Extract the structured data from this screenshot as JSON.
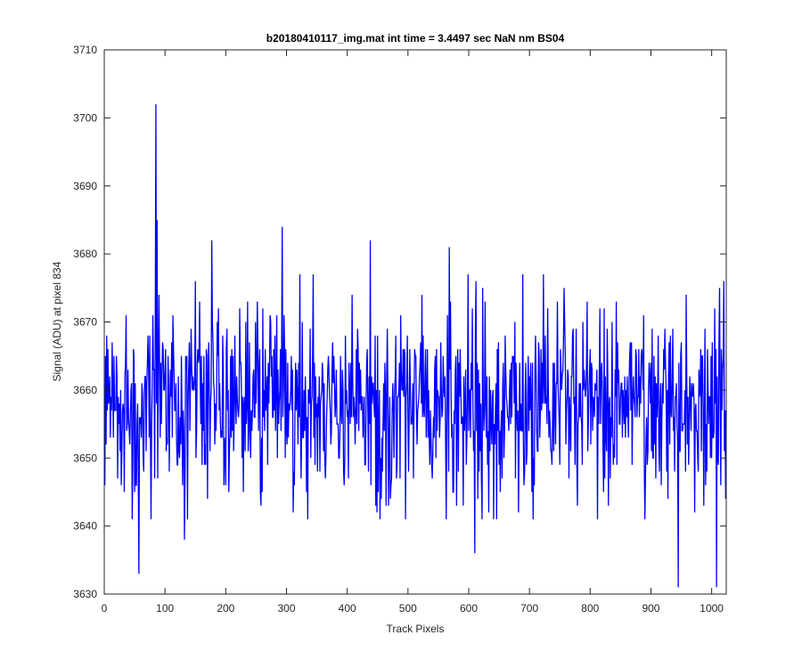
{
  "chart_data": {
    "type": "line",
    "title": "b20180410117_img.mat int time = 3.4497 sec  NaN nm BS04",
    "xlabel": "Track Pixels",
    "ylabel": "Signal (ADU) at pixel 834",
    "xlim": [
      0,
      1024
    ],
    "ylim": [
      3630,
      3710
    ],
    "xticks": [
      "0",
      "100",
      "200",
      "300",
      "400",
      "500",
      "600",
      "700",
      "800",
      "900",
      "1000"
    ],
    "yticks": [
      "3630",
      "3640",
      "3650",
      "3660",
      "3670",
      "3680",
      "3690",
      "3700",
      "3710"
    ],
    "grid": false,
    "legend": "none",
    "series": [
      {
        "name": "",
        "color": "#0000ff",
        "x_start": 1,
        "x_step": 1,
        "count": 1024,
        "baseline": 3658,
        "noise_std": 7,
        "highlights": [
          {
            "x": 57,
            "y": 3633
          },
          {
            "x": 85,
            "y": 3702
          },
          {
            "x": 87,
            "y": 3685
          },
          {
            "x": 132,
            "y": 3638
          },
          {
            "x": 177,
            "y": 3682
          },
          {
            "x": 293,
            "y": 3684
          },
          {
            "x": 438,
            "y": 3682
          },
          {
            "x": 568,
            "y": 3681
          },
          {
            "x": 610,
            "y": 3636
          },
          {
            "x": 945,
            "y": 3631
          },
          {
            "x": 1008,
            "y": 3631
          },
          {
            "x": 1013,
            "y": 3675
          }
        ]
      }
    ]
  }
}
